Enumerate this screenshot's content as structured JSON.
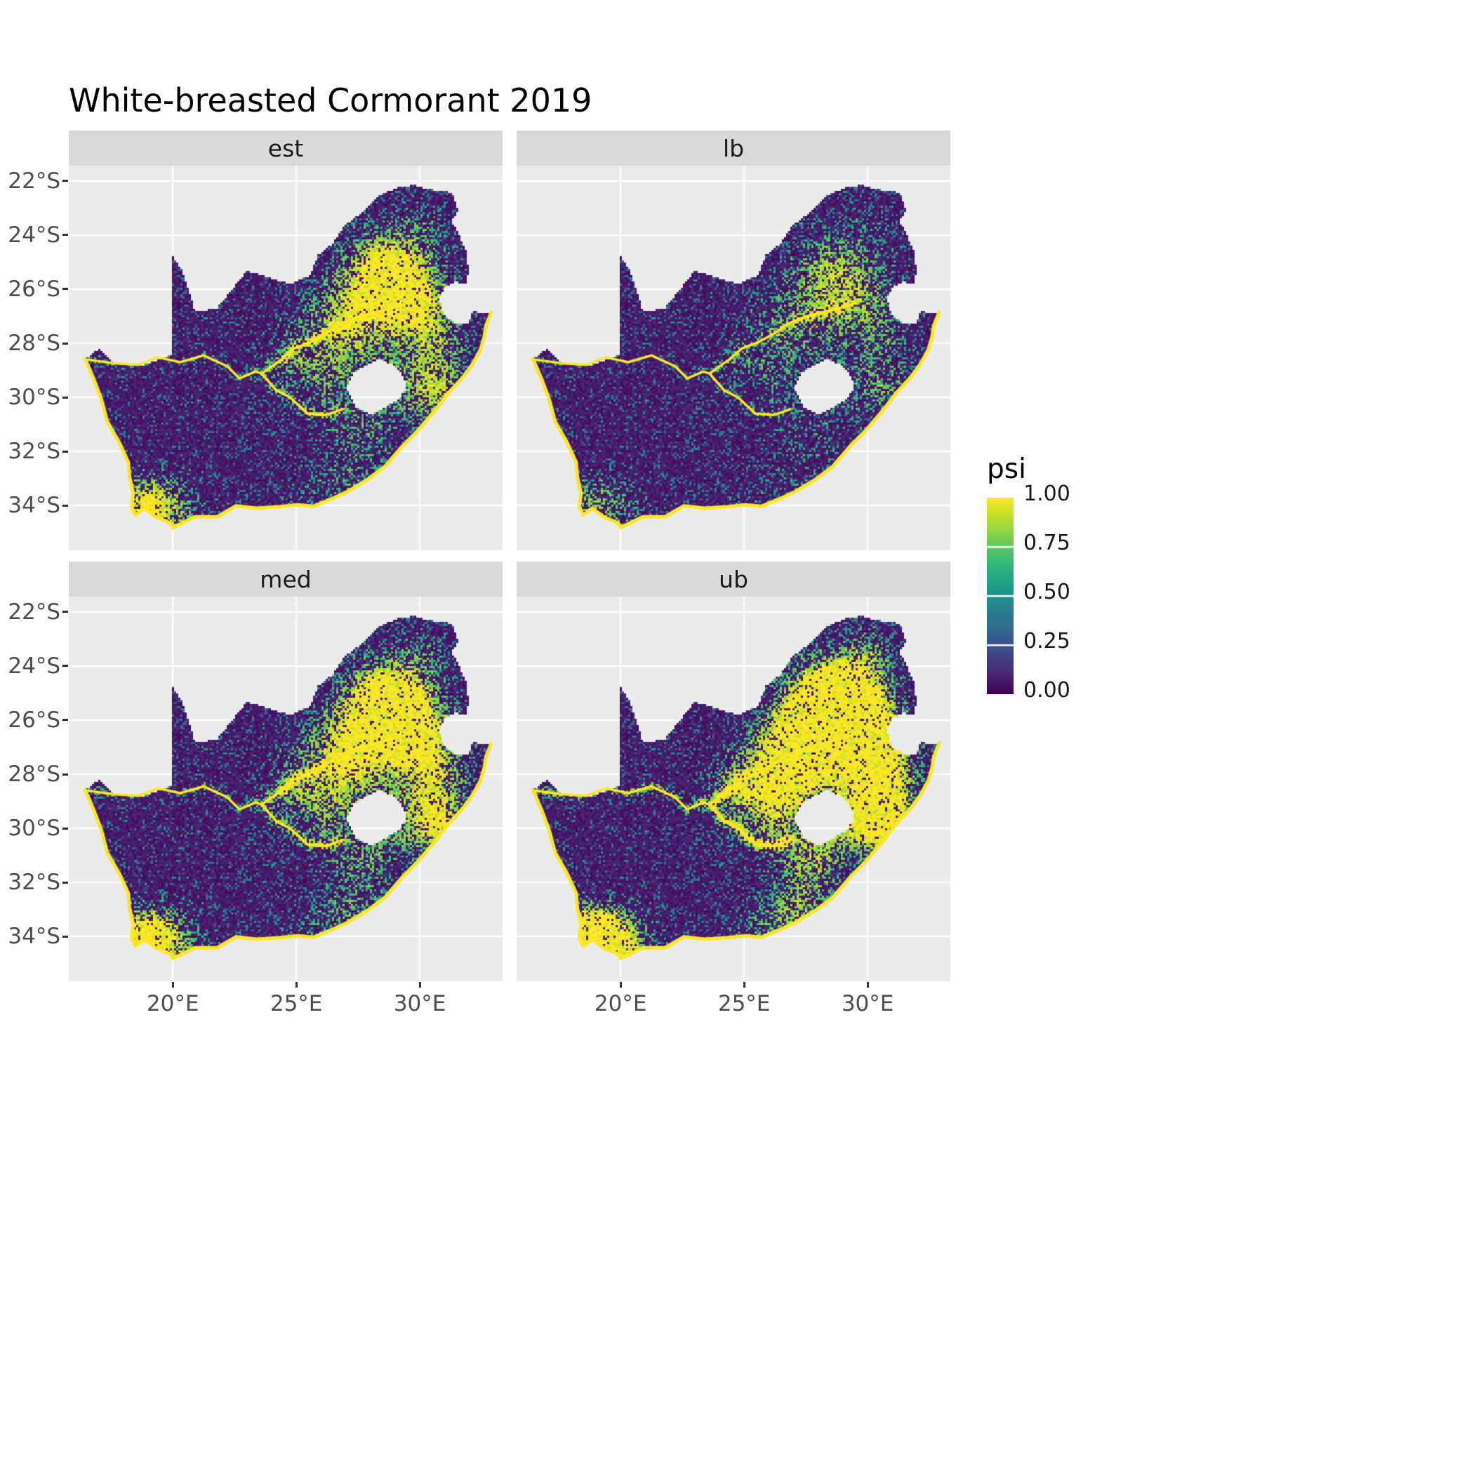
{
  "title": "White-breasted Cormorant 2019",
  "facets": [
    {
      "label": "est",
      "intensity": 0.8
    },
    {
      "label": "lb",
      "intensity": 0.5
    },
    {
      "label": "med",
      "intensity": 0.95
    },
    {
      "label": "ub",
      "intensity": 1.3
    }
  ],
  "axes": {
    "x": {
      "ticks": [
        "20°E",
        "25°E",
        "30°E"
      ],
      "values": [
        20,
        25,
        30
      ]
    },
    "y": {
      "ticks": [
        "22°S",
        "24°S",
        "26°S",
        "28°S",
        "30°S",
        "32°S",
        "34°S"
      ],
      "values": [
        -22,
        -24,
        -26,
        -28,
        -30,
        -32,
        -34
      ]
    }
  },
  "legend": {
    "title": "psi",
    "labels": [
      "1.00",
      "0.75",
      "0.50",
      "0.25",
      "0.00"
    ],
    "values": [
      1.0,
      0.75,
      0.5,
      0.25,
      0.0
    ]
  },
  "chart_data": {
    "type": "heatmap",
    "title": "White-breasted Cormorant 2019",
    "variable": "psi",
    "psi_range": [
      0,
      1
    ],
    "facets": [
      "est",
      "lb",
      "med",
      "ub"
    ],
    "facet_intensity": [
      0.8,
      0.5,
      0.95,
      1.3
    ],
    "x_range": [
      15.79,
      33.35
    ],
    "y_range": [
      -35.66,
      -21.43
    ],
    "region": "South Africa",
    "style": {
      "panel_bg": "#EBEBEB",
      "strip_bg": "#D9D9D9",
      "grid_color": "#FFFFFF",
      "axis_text_color": "#4D4D4D",
      "coast_color": "#FDE725"
    },
    "viridis_stops": [
      [
        68,
        1,
        84
      ],
      [
        72,
        40,
        120
      ],
      [
        62,
        74,
        137
      ],
      [
        49,
        104,
        142
      ],
      [
        38,
        130,
        142
      ],
      [
        31,
        158,
        137
      ],
      [
        53,
        183,
        121
      ],
      [
        109,
        205,
        89
      ],
      [
        180,
        222,
        44
      ],
      [
        253,
        231,
        37
      ]
    ],
    "coast_end_index": 34,
    "south_africa_outline": [
      [
        16.45,
        -28.58
      ],
      [
        16.8,
        -29.32
      ],
      [
        17.1,
        -30.05
      ],
      [
        17.35,
        -30.9
      ],
      [
        17.85,
        -31.7
      ],
      [
        18.2,
        -32.4
      ],
      [
        18.25,
        -32.95
      ],
      [
        18.4,
        -33.55
      ],
      [
        18.33,
        -34.05
      ],
      [
        18.48,
        -34.36
      ],
      [
        18.85,
        -34.1
      ],
      [
        19.3,
        -34.42
      ],
      [
        19.9,
        -34.65
      ],
      [
        20.0,
        -34.82
      ],
      [
        20.9,
        -34.42
      ],
      [
        21.8,
        -34.42
      ],
      [
        22.55,
        -34.02
      ],
      [
        23.4,
        -34.1
      ],
      [
        24.3,
        -34.05
      ],
      [
        25.05,
        -33.98
      ],
      [
        25.7,
        -34.03
      ],
      [
        26.45,
        -33.75
      ],
      [
        27.05,
        -33.5
      ],
      [
        27.95,
        -33.0
      ],
      [
        28.6,
        -32.55
      ],
      [
        29.25,
        -31.85
      ],
      [
        29.95,
        -31.2
      ],
      [
        30.65,
        -30.45
      ],
      [
        31.15,
        -29.85
      ],
      [
        31.75,
        -29.25
      ],
      [
        32.15,
        -28.75
      ],
      [
        32.45,
        -28.25
      ],
      [
        32.6,
        -27.8
      ],
      [
        32.68,
        -27.35
      ],
      [
        32.89,
        -26.86
      ],
      [
        32.13,
        -26.84
      ],
      [
        31.97,
        -27.31
      ],
      [
        31.45,
        -27.3
      ],
      [
        30.95,
        -26.9
      ],
      [
        30.8,
        -26.35
      ],
      [
        31.0,
        -25.95
      ],
      [
        31.45,
        -25.72
      ],
      [
        31.9,
        -25.82
      ],
      [
        31.97,
        -25.3
      ],
      [
        31.87,
        -24.6
      ],
      [
        31.55,
        -23.9
      ],
      [
        31.3,
        -23.5
      ],
      [
        31.55,
        -23.05
      ],
      [
        31.3,
        -22.42
      ],
      [
        30.45,
        -22.32
      ],
      [
        29.75,
        -22.15
      ],
      [
        29.05,
        -22.25
      ],
      [
        28.25,
        -22.6
      ],
      [
        27.6,
        -23.2
      ],
      [
        26.95,
        -23.65
      ],
      [
        26.5,
        -24.3
      ],
      [
        25.9,
        -24.72
      ],
      [
        25.55,
        -25.5
      ],
      [
        24.75,
        -25.8
      ],
      [
        24.15,
        -25.65
      ],
      [
        23.0,
        -25.32
      ],
      [
        22.45,
        -25.95
      ],
      [
        21.8,
        -26.7
      ],
      [
        20.9,
        -26.85
      ],
      [
        20.62,
        -25.95
      ],
      [
        20.35,
        -25.25
      ],
      [
        20.0,
        -24.78
      ],
      [
        19.98,
        -28.43
      ],
      [
        18.7,
        -28.84
      ],
      [
        17.6,
        -28.74
      ],
      [
        17.0,
        -28.22
      ]
    ],
    "lesotho_hole": [
      [
        27.0,
        -29.65
      ],
      [
        27.3,
        -29.1
      ],
      [
        27.75,
        -28.85
      ],
      [
        28.35,
        -28.6
      ],
      [
        28.95,
        -28.8
      ],
      [
        29.35,
        -29.25
      ],
      [
        29.45,
        -29.68
      ],
      [
        29.1,
        -30.1
      ],
      [
        28.5,
        -30.42
      ],
      [
        28.05,
        -30.65
      ],
      [
        27.4,
        -30.35
      ]
    ],
    "rivers": [
      [
        [
          16.5,
          -28.6
        ],
        [
          17.6,
          -28.74
        ],
        [
          18.6,
          -28.8
        ],
        [
          19.4,
          -28.52
        ],
        [
          20.3,
          -28.7
        ],
        [
          21.25,
          -28.45
        ],
        [
          22.2,
          -28.85
        ],
        [
          22.7,
          -29.3
        ],
        [
          23.35,
          -29.05
        ],
        [
          23.6,
          -29.12
        ]
      ],
      [
        [
          23.6,
          -29.12
        ],
        [
          24.2,
          -29.75
        ],
        [
          24.75,
          -30.0
        ],
        [
          25.45,
          -30.6
        ],
        [
          26.2,
          -30.65
        ],
        [
          26.85,
          -30.45
        ]
      ],
      [
        [
          23.6,
          -29.12
        ],
        [
          24.4,
          -28.6
        ],
        [
          24.9,
          -28.2
        ],
        [
          25.6,
          -27.95
        ],
        [
          26.2,
          -27.65
        ],
        [
          26.85,
          -27.25
        ],
        [
          27.55,
          -27.0
        ],
        [
          28.2,
          -26.85
        ],
        [
          28.9,
          -26.7
        ],
        [
          29.35,
          -26.55
        ]
      ]
    ],
    "hotspots": [
      [
        28.1,
        -26.3,
        1.4,
        1.0
      ],
      [
        29.5,
        -25.5,
        1.1,
        0.65
      ],
      [
        30.3,
        -26.9,
        1.0,
        0.6
      ],
      [
        26.6,
        -27.7,
        1.2,
        0.55
      ],
      [
        29.8,
        -29.6,
        1.0,
        0.6
      ],
      [
        30.9,
        -29.95,
        0.7,
        0.6
      ],
      [
        27.9,
        -31.0,
        0.9,
        0.45
      ],
      [
        26.0,
        -29.6,
        1.2,
        0.4
      ],
      [
        18.8,
        -33.9,
        0.75,
        0.9
      ],
      [
        19.9,
        -34.35,
        0.95,
        0.75
      ],
      [
        27.3,
        -32.9,
        0.9,
        0.45
      ],
      [
        24.6,
        -28.4,
        0.9,
        0.35
      ],
      [
        31.0,
        -28.3,
        0.9,
        0.45
      ],
      [
        25.8,
        -33.8,
        0.8,
        0.35
      ],
      [
        30.0,
        -23.5,
        0.8,
        0.35
      ],
      [
        28.3,
        -24.8,
        0.9,
        0.4
      ]
    ]
  }
}
